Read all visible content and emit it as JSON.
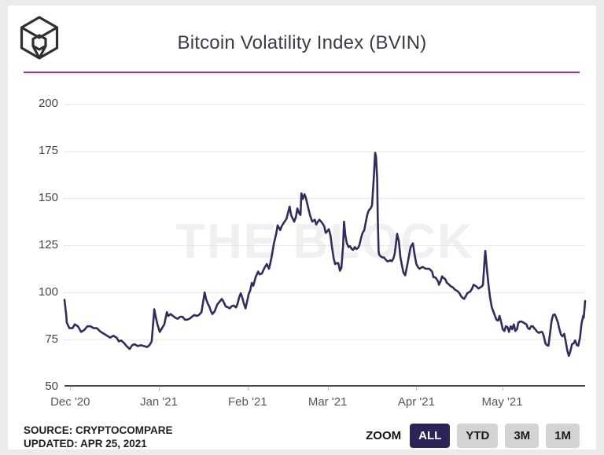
{
  "header": {
    "title": "Bitcoin Volatility Index (BVIN)",
    "logo_name": "the-block-logo",
    "accent_color": "#a428e8"
  },
  "watermark": "THE BLOCK",
  "footer": {
    "source_line": "SOURCE: CRYPTOCOMPARE",
    "updated_line": "UPDATED: APR 25, 2021"
  },
  "zoom_controls": {
    "label": "ZOOM",
    "active_bg": "#2b2459",
    "active_fg": "#ffffff",
    "inactive_bg": "#d3d3d4",
    "inactive_fg": "#1c1c1f",
    "options": [
      {
        "label": "ALL",
        "active": true
      },
      {
        "label": "YTD",
        "active": false
      },
      {
        "label": "3M",
        "active": false
      },
      {
        "label": "1M",
        "active": false
      }
    ]
  },
  "chart_data": {
    "type": "line",
    "title": "Bitcoin Volatility Index (BVIN)",
    "series_name": "BVIN",
    "line_color": "#332c63",
    "grid": "horizontal, dotted below 175",
    "legend": "none",
    "y_range": [
      50,
      200
    ],
    "y_ticks": [
      50,
      75,
      100,
      125,
      150,
      175,
      200
    ],
    "x_range_days": [
      -2,
      180
    ],
    "x_epoch": "days relative to Dec 1 2020",
    "x_ticks": [
      {
        "day": 0,
        "label": "Dec '20"
      },
      {
        "day": 31,
        "label": "Jan '21"
      },
      {
        "day": 62,
        "label": "Feb '21"
      },
      {
        "day": 90,
        "label": "Mar '21"
      },
      {
        "day": 121,
        "label": "Apr '21"
      },
      {
        "day": 151,
        "label": "May '21"
      }
    ],
    "points": [
      [
        -2,
        96
      ],
      [
        -1.4,
        88
      ],
      [
        -1.2,
        84
      ],
      [
        -0.3,
        81
      ],
      [
        0.8,
        81
      ],
      [
        1.6,
        83
      ],
      [
        2.7,
        82
      ],
      [
        3.8,
        79
      ],
      [
        4.9,
        80
      ],
      [
        6,
        82
      ],
      [
        7.1,
        82
      ],
      [
        8.2,
        81
      ],
      [
        9.3,
        81
      ],
      [
        10.7,
        79
      ],
      [
        11.8,
        78
      ],
      [
        12.9,
        77
      ],
      [
        14,
        76
      ],
      [
        15.1,
        77
      ],
      [
        16.2,
        76
      ],
      [
        17,
        74
      ],
      [
        17.8,
        74.5
      ],
      [
        18.9,
        73
      ],
      [
        19.7,
        71.5
      ],
      [
        20.8,
        70
      ],
      [
        21.7,
        72
      ],
      [
        22.5,
        72.5
      ],
      [
        23.6,
        71.5
      ],
      [
        24.7,
        72
      ],
      [
        25.8,
        71.5
      ],
      [
        26.9,
        71
      ],
      [
        27.7,
        72
      ],
      [
        28.5,
        74
      ],
      [
        29.4,
        91
      ],
      [
        29.9,
        87
      ],
      [
        30.5,
        83
      ],
      [
        31.3,
        79
      ],
      [
        32.1,
        81
      ],
      [
        32.9,
        83
      ],
      [
        33.8,
        89.5
      ],
      [
        34.3,
        87.5
      ],
      [
        35.1,
        88.5
      ],
      [
        35.9,
        87.5
      ],
      [
        36.8,
        86.5
      ],
      [
        37.6,
        86
      ],
      [
        38.4,
        87
      ],
      [
        39.3,
        87
      ],
      [
        40.1,
        85.5
      ],
      [
        40.9,
        85.5
      ],
      [
        41.7,
        86
      ],
      [
        42.5,
        87
      ],
      [
        43.4,
        88
      ],
      [
        44.2,
        87.5
      ],
      [
        45,
        88
      ],
      [
        45.9,
        89.5
      ],
      [
        46.7,
        97
      ],
      [
        47,
        100
      ],
      [
        47.5,
        96.5
      ],
      [
        48.1,
        94
      ],
      [
        48.6,
        92.5
      ],
      [
        49.2,
        90
      ],
      [
        49.7,
        88.5
      ],
      [
        50.5,
        90
      ],
      [
        51.4,
        93.5
      ],
      [
        52.2,
        95
      ],
      [
        53,
        96.5
      ],
      [
        53.6,
        95
      ],
      [
        54.4,
        92.5
      ],
      [
        55.2,
        92
      ],
      [
        55.8,
        91.5
      ],
      [
        56.3,
        92.5
      ],
      [
        57.1,
        93
      ],
      [
        58,
        92
      ],
      [
        58.5,
        94
      ],
      [
        59.1,
        97.5
      ],
      [
        59.6,
        99.5
      ],
      [
        60.2,
        97
      ],
      [
        60.7,
        94
      ],
      [
        61.3,
        91.5
      ],
      [
        61.8,
        95
      ],
      [
        62.4,
        99
      ],
      [
        62.9,
        101
      ],
      [
        63.5,
        105
      ],
      [
        64,
        103.5
      ],
      [
        64.8,
        108
      ],
      [
        65.7,
        111
      ],
      [
        66.2,
        109.5
      ],
      [
        67,
        110
      ],
      [
        67.9,
        113
      ],
      [
        68.7,
        115
      ],
      [
        69.5,
        112.5
      ],
      [
        70.3,
        118
      ],
      [
        71.2,
        126
      ],
      [
        72,
        131
      ],
      [
        72.5,
        135.5
      ],
      [
        73.4,
        133
      ],
      [
        73.9,
        135
      ],
      [
        74.7,
        137
      ],
      [
        75.6,
        139
      ],
      [
        76.1,
        142
      ],
      [
        76.7,
        145.5
      ],
      [
        77.2,
        141
      ],
      [
        77.8,
        139
      ],
      [
        78.3,
        137.5
      ],
      [
        78.9,
        140
      ],
      [
        79.4,
        144.5
      ],
      [
        80,
        142
      ],
      [
        80.5,
        141
      ],
      [
        80.8,
        152.5
      ],
      [
        81.3,
        149.5
      ],
      [
        81.9,
        152
      ],
      [
        82.4,
        150
      ],
      [
        83,
        146
      ],
      [
        83.8,
        141
      ],
      [
        84.6,
        137.5
      ],
      [
        85.5,
        138.5
      ],
      [
        86,
        136
      ],
      [
        86.6,
        137.5
      ],
      [
        87.1,
        138.5
      ],
      [
        87.7,
        137.5
      ],
      [
        88.2,
        136.5
      ],
      [
        88.8,
        135
      ],
      [
        89.3,
        131.5
      ],
      [
        89.9,
        132.5
      ],
      [
        90.4,
        133.5
      ],
      [
        91,
        130
      ],
      [
        91.5,
        124
      ],
      [
        92.1,
        118
      ],
      [
        92.6,
        115
      ],
      [
        93.2,
        115.5
      ],
      [
        93.7,
        115.5
      ],
      [
        94.3,
        111.5
      ],
      [
        94.8,
        113
      ],
      [
        95.4,
        125
      ],
      [
        95.7,
        137.5
      ],
      [
        96.2,
        130
      ],
      [
        96.7,
        126
      ],
      [
        97.3,
        124
      ],
      [
        97.8,
        124.5
      ],
      [
        98.4,
        123
      ],
      [
        98.9,
        122.5
      ],
      [
        99.5,
        124
      ],
      [
        100,
        123
      ],
      [
        100.6,
        123.5
      ],
      [
        101.1,
        125
      ],
      [
        101.7,
        129
      ],
      [
        102.2,
        131.5
      ],
      [
        102.8,
        133
      ],
      [
        103.3,
        137
      ],
      [
        103.9,
        141.5
      ],
      [
        104.4,
        143.5
      ],
      [
        105,
        144.5
      ],
      [
        105.5,
        146
      ],
      [
        106.1,
        160
      ],
      [
        106.6,
        174
      ],
      [
        106.9,
        172
      ],
      [
        107.3,
        160
      ],
      [
        107.5,
        140
      ],
      [
        107.8,
        122
      ],
      [
        108,
        120
      ],
      [
        108.6,
        119
      ],
      [
        109.1,
        118.5
      ],
      [
        109.7,
        118.5
      ],
      [
        110.2,
        117.5
      ],
      [
        110.8,
        116.5
      ],
      [
        111.3,
        116.5
      ],
      [
        111.9,
        117
      ],
      [
        112.4,
        116.5
      ],
      [
        113,
        118
      ],
      [
        113.5,
        121
      ],
      [
        114.3,
        131
      ],
      [
        114.9,
        127
      ],
      [
        115.4,
        119
      ],
      [
        116,
        114
      ],
      [
        116.5,
        110.5
      ],
      [
        117.1,
        109
      ],
      [
        117.9,
        115
      ],
      [
        118.5,
        120
      ],
      [
        119,
        124
      ],
      [
        119.8,
        126
      ],
      [
        120.4,
        120
      ],
      [
        121,
        115
      ],
      [
        121.5,
        113.5
      ],
      [
        122.1,
        112.5
      ],
      [
        122.6,
        113
      ],
      [
        123.2,
        113.5
      ],
      [
        123.7,
        113
      ],
      [
        124.3,
        112.5
      ],
      [
        124.8,
        112.5
      ],
      [
        125.4,
        112.5
      ],
      [
        125.9,
        112
      ],
      [
        126.5,
        111
      ],
      [
        127,
        108
      ],
      [
        127.6,
        108
      ],
      [
        128.1,
        107
      ],
      [
        128.7,
        105.5
      ],
      [
        128.9,
        104
      ],
      [
        129.5,
        106
      ],
      [
        130,
        108.5
      ],
      [
        130.6,
        107.5
      ],
      [
        131.1,
        107
      ],
      [
        131.7,
        105
      ],
      [
        132.2,
        104.5
      ],
      [
        132.8,
        103.5
      ],
      [
        133.3,
        103
      ],
      [
        133.9,
        102.5
      ],
      [
        134.4,
        101.5
      ],
      [
        135,
        101
      ],
      [
        135.5,
        100.5
      ],
      [
        136.1,
        99.5
      ],
      [
        136.6,
        98
      ],
      [
        137.2,
        97
      ],
      [
        137.7,
        96.5
      ],
      [
        138.3,
        98
      ],
      [
        138.8,
        99.5
      ],
      [
        139.4,
        100
      ],
      [
        139.9,
        100.5
      ],
      [
        140.5,
        102
      ],
      [
        141,
        104
      ],
      [
        141.6,
        103.5
      ],
      [
        142.1,
        103
      ],
      [
        142.7,
        102
      ],
      [
        143.2,
        102.5
      ],
      [
        143.8,
        103
      ],
      [
        144.3,
        104
      ],
      [
        144.9,
        118
      ],
      [
        145.1,
        122
      ],
      [
        145.7,
        112
      ],
      [
        146.3,
        103
      ],
      [
        146.8,
        97
      ],
      [
        147.4,
        92
      ],
      [
        147.9,
        90
      ],
      [
        148.5,
        87.5
      ],
      [
        149,
        85.5
      ],
      [
        149.6,
        85
      ],
      [
        150.1,
        87.5
      ],
      [
        150.7,
        84
      ],
      [
        151.2,
        80.5
      ],
      [
        151.8,
        79.5
      ],
      [
        152.3,
        82
      ],
      [
        152.9,
        81.5
      ],
      [
        153.4,
        79
      ],
      [
        154,
        82
      ],
      [
        154.5,
        80.5
      ],
      [
        155.1,
        83
      ],
      [
        155.6,
        79.5
      ],
      [
        156.2,
        80.5
      ],
      [
        156.7,
        84
      ],
      [
        157.3,
        84.5
      ],
      [
        157.8,
        84.5
      ],
      [
        158.4,
        84
      ],
      [
        158.9,
        83.5
      ],
      [
        159.5,
        83
      ],
      [
        160,
        81
      ],
      [
        160.6,
        80.5
      ],
      [
        161.1,
        82
      ],
      [
        161.7,
        82
      ],
      [
        162.2,
        81
      ],
      [
        162.8,
        80
      ],
      [
        163.3,
        79
      ],
      [
        163.9,
        78.5
      ],
      [
        164.4,
        79
      ],
      [
        165,
        79
      ],
      [
        165.5,
        77
      ],
      [
        166.1,
        73
      ],
      [
        166.6,
        72
      ],
      [
        167.2,
        71.7
      ],
      [
        167.7,
        78
      ],
      [
        168.3,
        85
      ],
      [
        168.8,
        88
      ],
      [
        169.4,
        88.3
      ],
      [
        169.9,
        86.5
      ],
      [
        170.5,
        84
      ],
      [
        171,
        80.5
      ],
      [
        171.6,
        77.5
      ],
      [
        172.1,
        76.7
      ],
      [
        172.7,
        78
      ],
      [
        173.2,
        74
      ],
      [
        173.8,
        69
      ],
      [
        174.3,
        66.3
      ],
      [
        174.9,
        69
      ],
      [
        175.4,
        72.5
      ],
      [
        176,
        73
      ],
      [
        176.5,
        74.5
      ],
      [
        177.1,
        72
      ],
      [
        177.6,
        71.7
      ],
      [
        178.2,
        76
      ],
      [
        178.7,
        83
      ],
      [
        179.3,
        87.5
      ],
      [
        179.5,
        86.5
      ],
      [
        180,
        95.4
      ]
    ]
  }
}
